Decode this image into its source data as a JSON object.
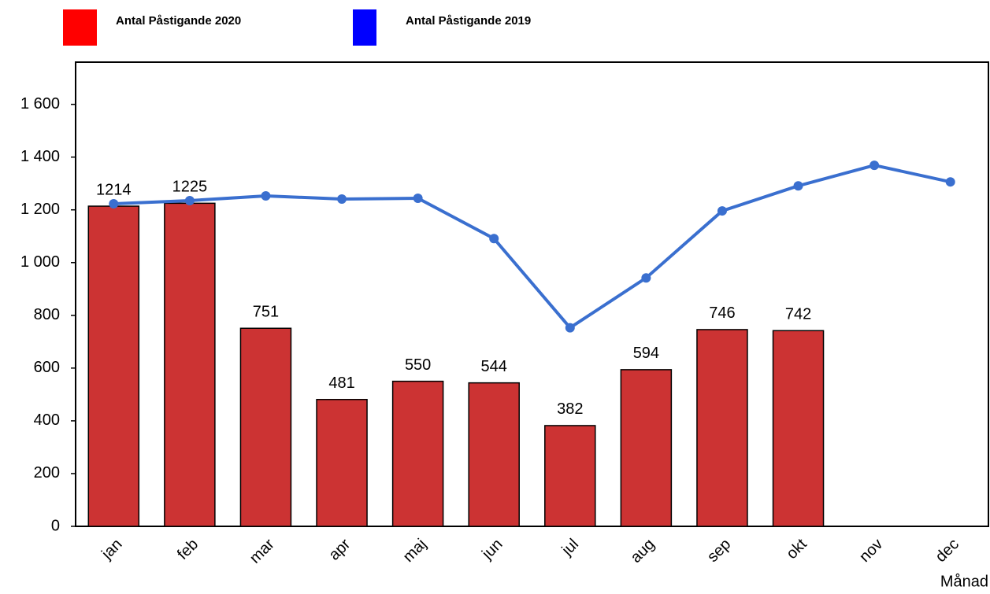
{
  "chart_data": {
    "type": "bar",
    "categories": [
      "jan",
      "feb",
      "mar",
      "apr",
      "maj",
      "jun",
      "jul",
      "aug",
      "sep",
      "okt",
      "nov",
      "dec"
    ],
    "series": [
      {
        "name": "Antal Påstigande 2020",
        "type": "bar",
        "color": "#cc3333",
        "legend_color": "#ff0000",
        "values": [
          1214,
          1225,
          751,
          481,
          550,
          544,
          382,
          594,
          746,
          742,
          null,
          null
        ]
      },
      {
        "name": "Antal Påstigande 2019",
        "type": "line",
        "color": "#3a6fcf",
        "legend_color": "#0000ff",
        "values": [
          1223,
          1235,
          1253,
          1241,
          1244,
          1091,
          753,
          942,
          1196,
          1291,
          1369,
          1306
        ]
      }
    ],
    "x_label": "Månad",
    "ylim": [
      0,
      1760
    ],
    "yticks": [
      0,
      200,
      400,
      600,
      800,
      {
        "value": 1000,
        "label": "1 000"
      },
      {
        "value": 1200,
        "label": "1 200"
      },
      {
        "value": 1400,
        "label": "1 400"
      },
      {
        "value": 1600,
        "label": "1 600"
      }
    ]
  }
}
